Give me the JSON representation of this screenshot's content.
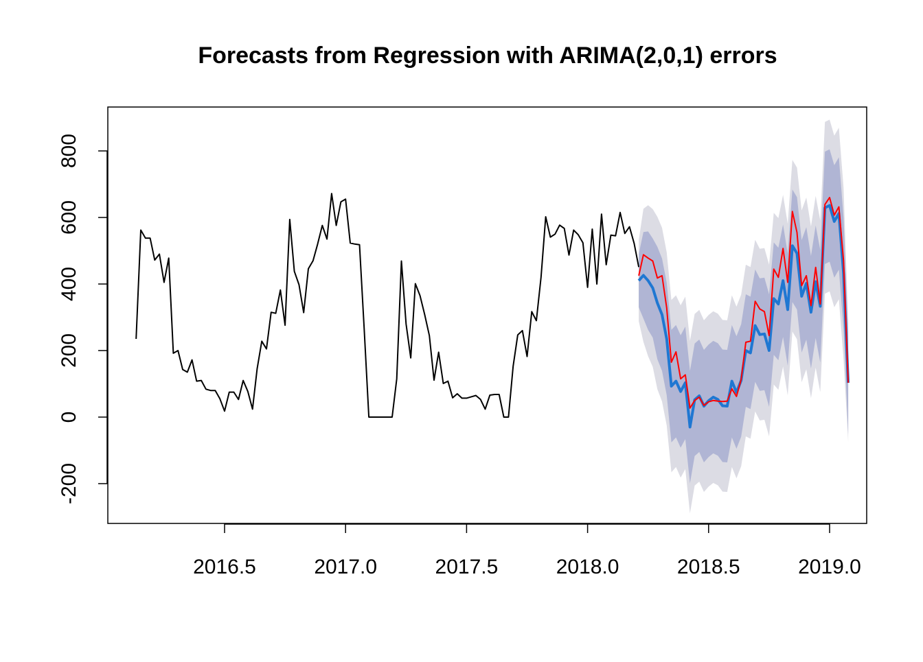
{
  "chart_data": {
    "type": "line",
    "title": "Forecasts from Regression with ARIMA(2,0,1) errors",
    "xlabel": "",
    "ylabel": "",
    "xlim": [
      2016.13,
      2019.05
    ],
    "ylim": [
      -250,
      890
    ],
    "x_ticks": [
      2016.5,
      2017.0,
      2017.5,
      2018.0,
      2018.5,
      2019.0
    ],
    "x_tick_labels": [
      "2016.5",
      "2017.0",
      "2017.5",
      "2018.0",
      "2018.5",
      "2019.0"
    ],
    "y_ticks": [
      -200,
      0,
      200,
      400,
      600,
      800
    ],
    "y_tick_labels": [
      "-200",
      "0",
      "200",
      "400",
      "600",
      "800"
    ],
    "grid": false,
    "legend": "none",
    "frequency": 52,
    "colors": {
      "observed": "#000000",
      "forecast": "#1f77d2",
      "red_line": "#ff0000",
      "band_80": "#b0b5d4",
      "band_95": "#dcdce4"
    },
    "series": [
      {
        "role": "observed",
        "x_start": 2016.1346,
        "values": [
          235,
          562,
          538,
          538,
          472,
          490,
          405,
          478,
          192,
          200,
          143,
          135,
          172,
          108,
          110,
          84,
          80,
          80,
          55,
          18,
          75,
          75,
          53,
          110,
          77,
          24,
          145,
          228,
          205,
          315,
          312,
          382,
          276,
          594,
          438,
          398,
          314,
          446,
          470,
          520,
          576,
          535,
          672,
          576,
          647,
          655,
          523,
          520,
          518,
          265,
          0,
          0,
          0,
          0,
          0,
          0,
          115,
          469,
          280,
          178,
          401,
          365,
          308,
          245,
          111,
          195,
          101,
          108,
          58,
          70,
          57,
          57,
          61,
          65,
          53,
          24,
          66,
          68,
          68,
          0,
          0,
          153,
          247,
          260,
          182,
          317,
          290,
          420,
          602,
          541,
          550,
          577,
          567,
          487,
          562,
          548,
          524,
          390,
          565,
          400,
          610,
          458,
          547,
          545,
          615,
          552,
          572,
          522,
          451
        ]
      },
      {
        "role": "forecast",
        "x_start": 2018.2115,
        "values": [
          410,
          426,
          410,
          388,
          343,
          308,
          235,
          93,
          108,
          77,
          103,
          -30,
          52,
          64,
          33,
          49,
          60,
          53,
          34,
          33,
          108,
          74,
          110,
          200,
          193,
          275,
          248,
          250,
          200,
          356,
          340,
          410,
          323,
          515,
          492,
          363,
          402,
          315,
          407,
          333,
          629,
          636,
          588,
          612,
          432,
          103
        ]
      },
      {
        "role": "red",
        "x_start": 2018.2115,
        "values": [
          425,
          488,
          478,
          469,
          418,
          425,
          328,
          165,
          196,
          115,
          127,
          27,
          50,
          60,
          35,
          46,
          50,
          48,
          47,
          48,
          85,
          62,
          113,
          225,
          228,
          348,
          325,
          317,
          245,
          445,
          420,
          507,
          405,
          618,
          555,
          395,
          425,
          335,
          450,
          340,
          639,
          660,
          607,
          632,
          470,
          103
        ]
      }
    ],
    "band_80": {
      "x_start": 2018.2115,
      "lower": [
        330,
        296,
        262,
        239,
        174,
        139,
        66,
        -76,
        -61,
        -92,
        -66,
        -199,
        -117,
        -105,
        -136,
        -120,
        -109,
        -116,
        -135,
        -136,
        -61,
        -95,
        -59,
        31,
        24,
        106,
        79,
        81,
        31,
        187,
        171,
        241,
        154,
        346,
        323,
        194,
        233,
        146,
        238,
        164,
        460,
        467,
        419,
        443,
        263,
        -50
      ],
      "upper": [
        490,
        556,
        558,
        537,
        512,
        477,
        404,
        262,
        277,
        246,
        272,
        139,
        221,
        233,
        202,
        218,
        229,
        222,
        203,
        202,
        277,
        243,
        279,
        369,
        362,
        444,
        417,
        419,
        369,
        525,
        509,
        579,
        492,
        684,
        661,
        532,
        571,
        484,
        576,
        502,
        798,
        805,
        757,
        781,
        601,
        256
      ]
    },
    "band_95": {
      "x_start": 2018.2115,
      "lower": [
        288,
        226,
        183,
        151,
        84,
        47,
        -25,
        -166,
        -150,
        -182,
        -156,
        -289,
        -206,
        -194,
        -225,
        -209,
        -198,
        -205,
        -224,
        -225,
        -150,
        -184,
        -148,
        -58,
        -65,
        17,
        -10,
        -8,
        -58,
        98,
        82,
        152,
        65,
        257,
        234,
        105,
        144,
        57,
        149,
        75,
        371,
        378,
        330,
        354,
        174,
        -75
      ],
      "upper": [
        532,
        626,
        637,
        625,
        602,
        569,
        495,
        352,
        366,
        336,
        362,
        229,
        310,
        322,
        291,
        307,
        318,
        311,
        292,
        291,
        366,
        332,
        368,
        458,
        451,
        533,
        506,
        508,
        458,
        614,
        598,
        668,
        581,
        773,
        750,
        621,
        660,
        573,
        665,
        591,
        887,
        894,
        846,
        870,
        690,
        281
      ]
    }
  }
}
